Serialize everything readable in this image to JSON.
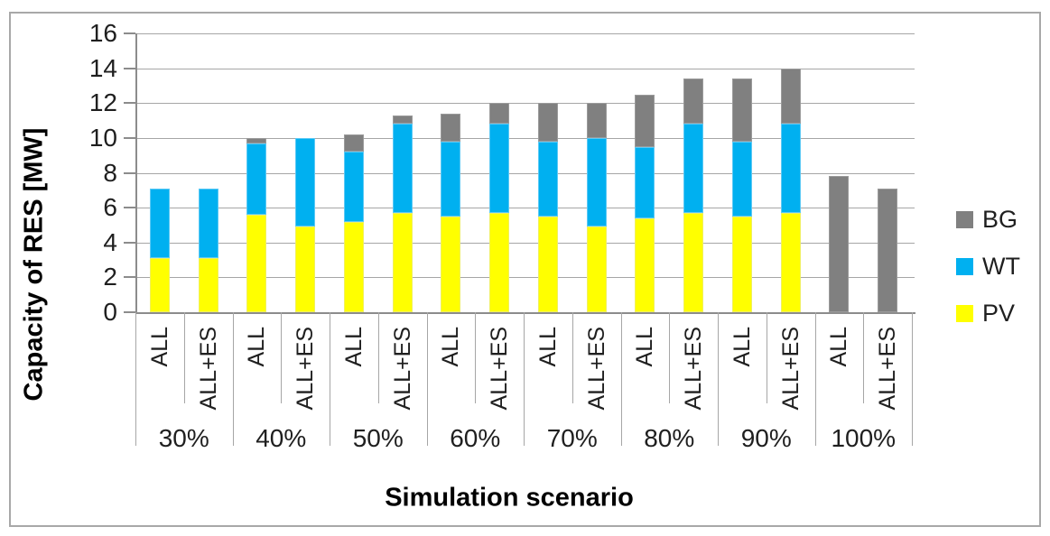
{
  "frame": {
    "border_color": "#a8a8a8",
    "background": "#ffffff"
  },
  "chart_data": {
    "type": "bar",
    "stacked": true,
    "xlabel": "Simulation scenario",
    "ylabel": "Capacity of RES [MW]",
    "ylim": [
      0,
      16
    ],
    "yticks": [
      0,
      2,
      4,
      6,
      8,
      10,
      12,
      14,
      16
    ],
    "grid": true,
    "legend_position": "right",
    "group_labels": [
      "30%",
      "40%",
      "50%",
      "60%",
      "70%",
      "80%",
      "90%",
      "100%"
    ],
    "bar_labels": [
      "ALL",
      "ALL+ES"
    ],
    "series": [
      {
        "name": "PV",
        "color": "#ffff00",
        "edge": "#f0f060",
        "values": [
          3.1,
          3.1,
          5.6,
          4.9,
          5.2,
          5.7,
          5.5,
          5.7,
          5.5,
          4.9,
          5.4,
          5.7,
          5.5,
          5.7,
          0,
          0
        ]
      },
      {
        "name": "WT",
        "color": "#00b0f0",
        "edge": "#5cc9f5",
        "values": [
          4.0,
          4.0,
          4.1,
          5.1,
          4.0,
          5.1,
          4.3,
          5.1,
          4.3,
          5.1,
          4.1,
          5.1,
          4.3,
          5.1,
          0,
          0
        ]
      },
      {
        "name": "BG",
        "color": "#808080",
        "edge": "#9b9b9b",
        "values": [
          0,
          0,
          0.3,
          0,
          1.0,
          0.5,
          1.6,
          1.2,
          2.2,
          2.0,
          3.0,
          2.6,
          3.6,
          3.2,
          7.8,
          7.1
        ]
      }
    ],
    "legend": [
      {
        "label": "BG",
        "color": "#808080"
      },
      {
        "label": "WT",
        "color": "#00b0f0"
      },
      {
        "label": "PV",
        "color": "#ffff00"
      }
    ],
    "colors": {
      "gridline": "#a6a6a6",
      "axis": "#8c8c8c",
      "text": "#1f1f1f"
    }
  }
}
